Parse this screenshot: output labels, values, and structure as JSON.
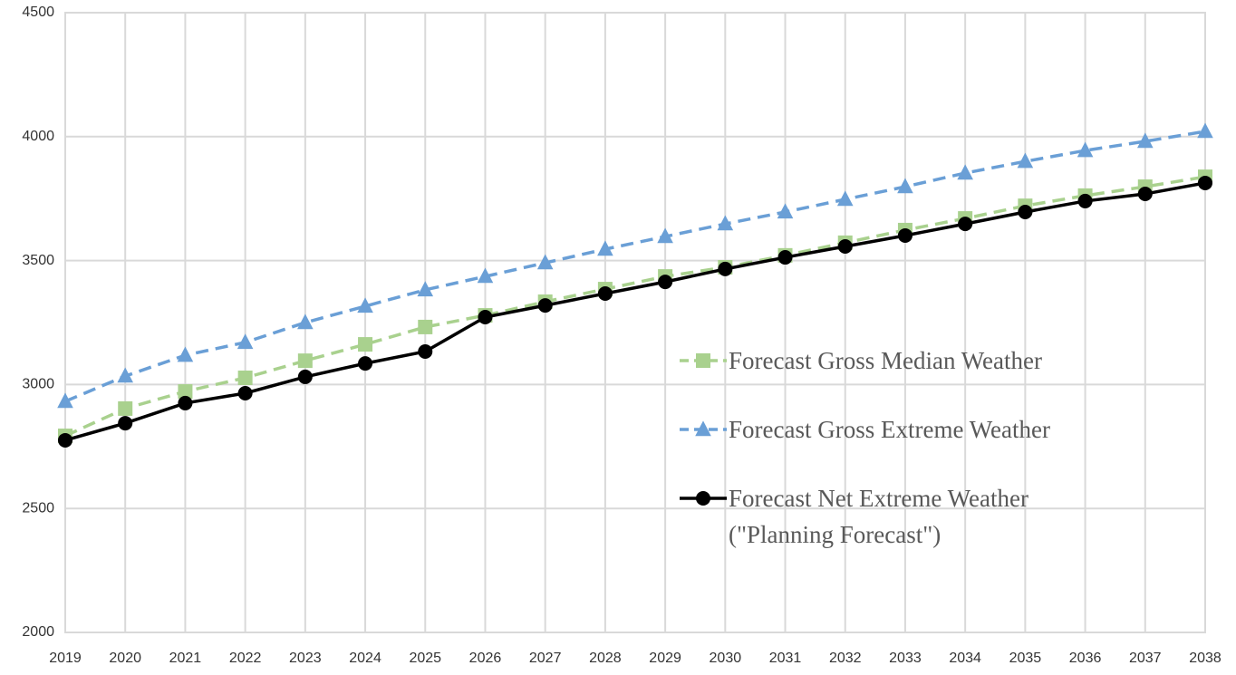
{
  "chart_data": {
    "type": "line",
    "x": [
      2019,
      2020,
      2021,
      2022,
      2023,
      2024,
      2025,
      2026,
      2027,
      2028,
      2029,
      2030,
      2031,
      2032,
      2033,
      2034,
      2035,
      2036,
      2037,
      2038
    ],
    "xlim": [
      2019,
      2038
    ],
    "xticks": [
      2019,
      2020,
      2021,
      2022,
      2023,
      2024,
      2025,
      2026,
      2027,
      2028,
      2029,
      2030,
      2031,
      2032,
      2033,
      2034,
      2035,
      2036,
      2037,
      2038
    ],
    "ylim": [
      2000,
      4500
    ],
    "yticks": [
      2000,
      2500,
      3000,
      3500,
      4000,
      4500
    ],
    "grid": true,
    "legend": "right",
    "series": [
      {
        "name": "Forecast Gross Median Weather",
        "color": "#a9d18e",
        "marker": "square",
        "dashed": true,
        "values": [
          2793,
          2903,
          2972,
          3027,
          3096,
          3162,
          3232,
          3279,
          3334,
          3385,
          3436,
          3473,
          3521,
          3572,
          3623,
          3670,
          3721,
          3762,
          3798,
          3838
        ]
      },
      {
        "name": "Forecast Gross Extreme Weather",
        "color": "#6a9fd6",
        "marker": "triangle",
        "dashed": true,
        "values": [
          2932,
          3034,
          3118,
          3170,
          3250,
          3316,
          3382,
          3436,
          3491,
          3546,
          3597,
          3648,
          3696,
          3747,
          3798,
          3853,
          3900,
          3944,
          3981,
          4021
        ]
      },
      {
        "name": "Forecast Net Extreme Weather (\"Planning Forecast\")",
        "color": "#000000",
        "marker": "circle",
        "dashed": false,
        "values": [
          2775,
          2844,
          2925,
          2965,
          3031,
          3085,
          3133,
          3272,
          3319,
          3367,
          3414,
          3466,
          3513,
          3557,
          3601,
          3648,
          3696,
          3740,
          3769,
          3813
        ]
      }
    ]
  }
}
